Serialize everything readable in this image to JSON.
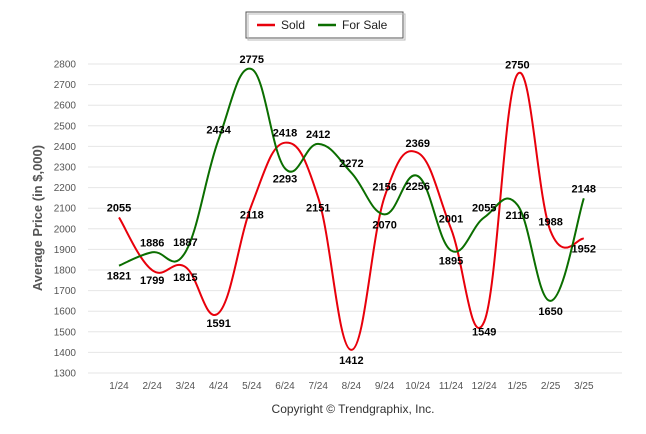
{
  "chart_data": {
    "type": "line",
    "categories": [
      "1/24",
      "2/24",
      "3/24",
      "4/24",
      "5/24",
      "6/24",
      "7/24",
      "8/24",
      "9/24",
      "10/24",
      "11/24",
      "12/24",
      "1/25",
      "2/25",
      "3/25"
    ],
    "series": [
      {
        "name": "Sold",
        "color": "#e8000b",
        "values": [
          2055,
          1799,
          1815,
          1591,
          2118,
          2418,
          2151,
          1412,
          2156,
          2369,
          2001,
          1549,
          2750,
          1988,
          1952
        ]
      },
      {
        "name": "For Sale",
        "color": "#0b6e00",
        "values": [
          1821,
          1886,
          1887,
          2434,
          2775,
          2293,
          2412,
          2272,
          2070,
          2256,
          1895,
          2055,
          2116,
          1650,
          2148
        ]
      }
    ],
    "ylabel": "Average Price (in $,000)",
    "xlabel": "",
    "ylim": [
      1300,
      2800
    ],
    "yticks": [
      1300,
      1400,
      1500,
      1600,
      1700,
      1800,
      1900,
      2000,
      2100,
      2200,
      2300,
      2400,
      2500,
      2600,
      2700,
      2800
    ],
    "grid": true,
    "legend": "top-center",
    "credit": "Copyright © Trendgraphix, Inc."
  }
}
